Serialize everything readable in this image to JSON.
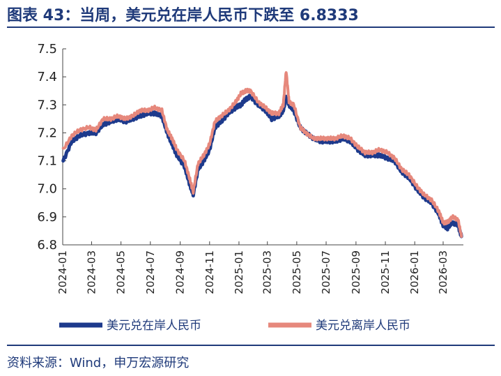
{
  "header": {
    "title": "图表 43：当周，美元兑在岸人民币下跌至 6.8333"
  },
  "footer": {
    "source": "资料来源：Wind，申万宏源研究"
  },
  "colors": {
    "onshore": "#1d3a8c",
    "offshore": "#e6887c",
    "title": "#1f3a7a"
  },
  "chart_data": {
    "type": "line",
    "title": "",
    "xlabel": "",
    "ylabel": "",
    "ylim": [
      6.8,
      7.5
    ],
    "yticks": [
      "7.5",
      "7.4",
      "7.3",
      "7.2",
      "7.1",
      "7.0",
      "6.9",
      "6.8"
    ],
    "xticks": [
      "2024-01",
      "2024-03",
      "2024-05",
      "2024-07",
      "2024-09",
      "2024-11",
      "2025-01",
      "2025-03",
      "2025-05",
      "2025-07",
      "2025-09",
      "2025-11",
      "2026-01",
      "2026-03"
    ],
    "grid": false,
    "legend_position": "bottom",
    "x": [
      "2024-01-02",
      "2024-01-20",
      "2024-02-05",
      "2024-02-25",
      "2024-03-10",
      "2024-03-25",
      "2024-04-10",
      "2024-04-25",
      "2024-05-10",
      "2024-05-25",
      "2024-06-10",
      "2024-06-25",
      "2024-07-10",
      "2024-07-25",
      "2024-08-05",
      "2024-08-15",
      "2024-08-25",
      "2024-09-10",
      "2024-09-20",
      "2024-09-28",
      "2024-10-08",
      "2024-10-20",
      "2024-11-01",
      "2024-11-12",
      "2024-11-25",
      "2024-12-10",
      "2024-12-25",
      "2025-01-05",
      "2025-01-15",
      "2025-01-25",
      "2025-02-10",
      "2025-02-25",
      "2025-03-10",
      "2025-03-25",
      "2025-04-03",
      "2025-04-09",
      "2025-04-15",
      "2025-04-25",
      "2025-05-08",
      "2025-05-20",
      "2025-06-05",
      "2025-06-20",
      "2025-07-05",
      "2025-07-20",
      "2025-08-05",
      "2025-08-20",
      "2025-09-05",
      "2025-09-20",
      "2025-10-05",
      "2025-10-20",
      "2025-11-05",
      "2025-11-20",
      "2025-12-05",
      "2025-12-20",
      "2026-01-05",
      "2026-01-20",
      "2026-02-05",
      "2026-02-20",
      "2026-03-01",
      "2026-03-10",
      "2026-03-20",
      "2026-04-01",
      "2026-04-08"
    ],
    "series": [
      {
        "name": "美元兑在岸人民币",
        "values": [
          7.1,
          7.17,
          7.19,
          7.2,
          7.2,
          7.23,
          7.24,
          7.25,
          7.24,
          7.25,
          7.26,
          7.27,
          7.27,
          7.26,
          7.2,
          7.16,
          7.12,
          7.08,
          7.02,
          6.98,
          7.07,
          7.1,
          7.14,
          7.22,
          7.24,
          7.27,
          7.29,
          7.3,
          7.32,
          7.33,
          7.3,
          7.28,
          7.25,
          7.26,
          7.28,
          7.33,
          7.3,
          7.28,
          7.22,
          7.2,
          7.18,
          7.17,
          7.17,
          7.17,
          7.18,
          7.17,
          7.14,
          7.12,
          7.12,
          7.12,
          7.11,
          7.1,
          7.06,
          7.04,
          7.0,
          6.97,
          6.95,
          6.91,
          6.87,
          6.86,
          6.88,
          6.87,
          6.83
        ]
      },
      {
        "name": "美元兑离岸人民币",
        "values": [
          7.14,
          7.19,
          7.21,
          7.22,
          7.21,
          7.25,
          7.25,
          7.26,
          7.25,
          7.26,
          7.28,
          7.28,
          7.29,
          7.28,
          7.21,
          7.18,
          7.14,
          7.1,
          7.04,
          6.99,
          7.09,
          7.12,
          7.16,
          7.24,
          7.26,
          7.28,
          7.31,
          7.34,
          7.35,
          7.35,
          7.31,
          7.29,
          7.27,
          7.27,
          7.3,
          7.42,
          7.31,
          7.3,
          7.22,
          7.2,
          7.18,
          7.18,
          7.18,
          7.18,
          7.19,
          7.18,
          7.15,
          7.13,
          7.13,
          7.14,
          7.13,
          7.11,
          7.07,
          7.05,
          7.01,
          6.98,
          6.96,
          6.92,
          6.88,
          6.88,
          6.9,
          6.89,
          6.83
        ]
      }
    ]
  }
}
